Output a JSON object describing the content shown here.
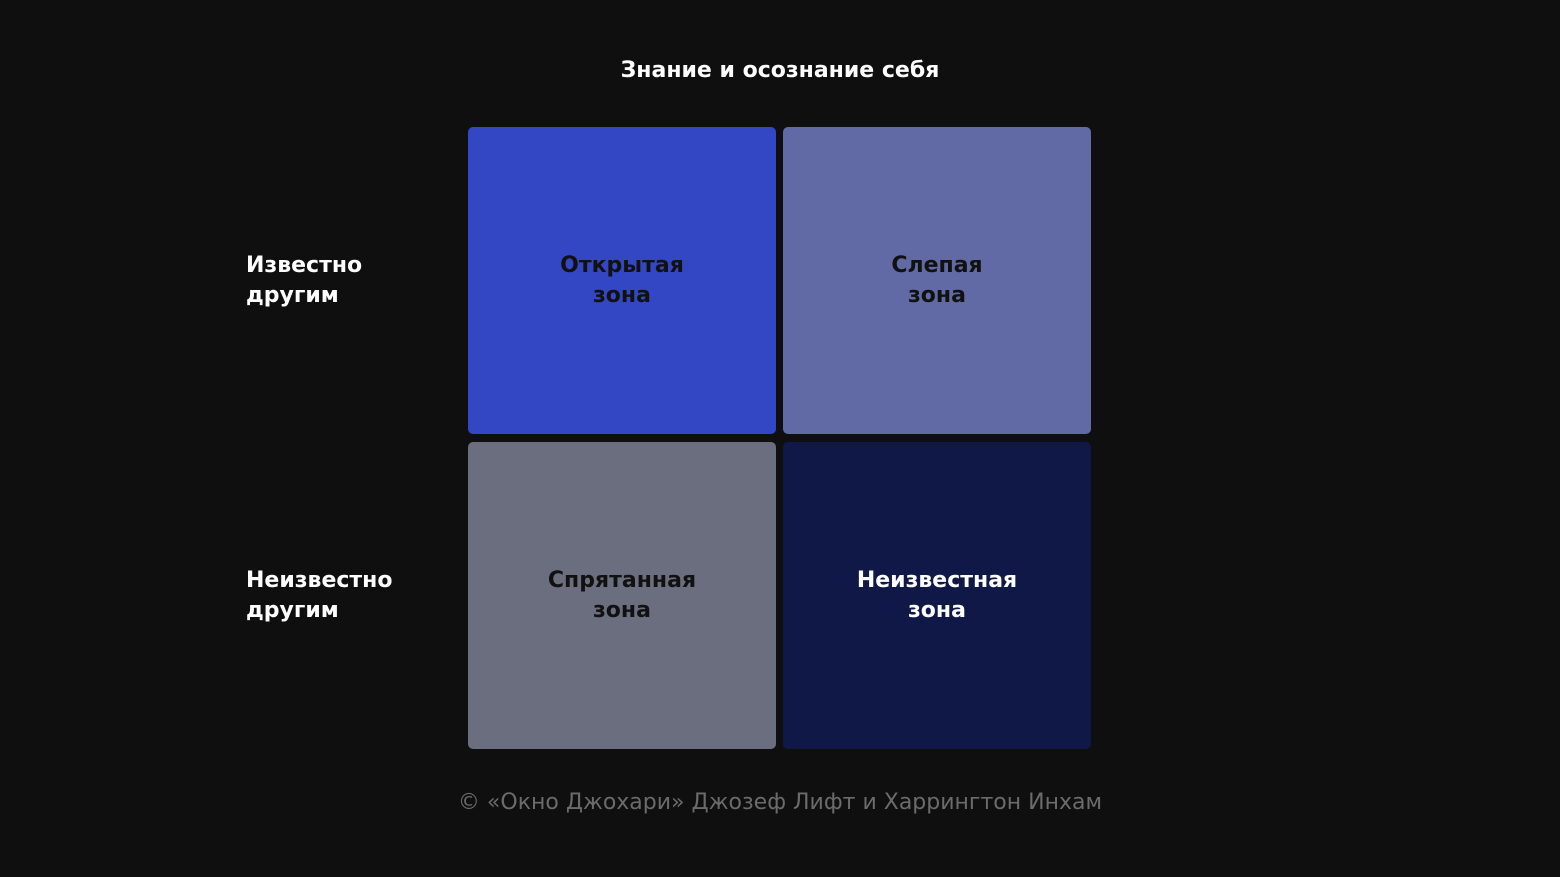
{
  "title": "Знание и осознание себя",
  "rows": [
    {
      "label": "Известно\nдругим"
    },
    {
      "label": "Неизвестно\nдругим"
    }
  ],
  "cells": [
    {
      "label": "Открытая\nзона",
      "color": "#3347c4",
      "text_color": "#111111"
    },
    {
      "label": "Слепая\nзона",
      "color": "#616aa4",
      "text_color": "#111111"
    },
    {
      "label": "Спрятанная\nзона",
      "color": "#6b6e7e",
      "text_color": "#111111"
    },
    {
      "label": "Неизвестная\nзона",
      "color": "#101848",
      "text_color": "#ffffff"
    }
  ],
  "footer": "© «Окно Джохари» Джозеф Лифт и Харрингтон Инхам"
}
